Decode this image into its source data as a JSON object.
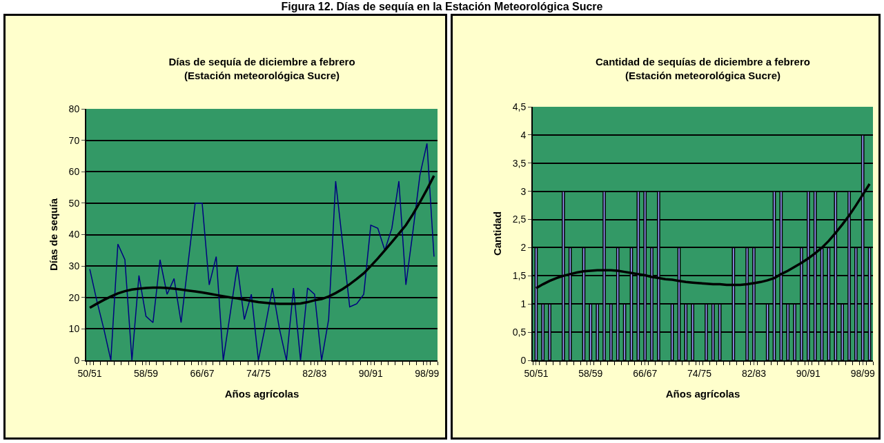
{
  "chart_data": [
    {
      "type": "line",
      "title": "Días de sequía de diciembre a febrero",
      "subtitle": "(Estación meteorológica Sucre)",
      "xlabel": "Años agrícolas",
      "ylabel": "Días de sequía",
      "annotations": [
        "Figura 12. Días de sequía en la Estación Meteorológica Sucre"
      ],
      "categories": [
        "50/51",
        null,
        null,
        null,
        null,
        null,
        null,
        null,
        "58/59",
        null,
        null,
        null,
        null,
        null,
        null,
        null,
        "66/67",
        null,
        null,
        null,
        null,
        null,
        null,
        null,
        "74/75",
        null,
        null,
        null,
        null,
        null,
        null,
        null,
        "82/83",
        null,
        null,
        null,
        null,
        null,
        null,
        null,
        "90/91",
        null,
        null,
        null,
        null,
        null,
        null,
        null,
        "98/99",
        null
      ],
      "series": [
        {
          "color": "#000080",
          "values": [
            29,
            19,
            10,
            0,
            37,
            32,
            0,
            27,
            14,
            12,
            32,
            21,
            26,
            12,
            31,
            50,
            50,
            24,
            33,
            0,
            15,
            30,
            13,
            21,
            0,
            11,
            23,
            10,
            0,
            23,
            0,
            23,
            21,
            0,
            13,
            57,
            37,
            17,
            18,
            21,
            43,
            42,
            35,
            42,
            57,
            24,
            41,
            59,
            69,
            33
          ]
        },
        {
          "type": "line",
          "color": "#000000",
          "values": [
            16.7,
            18,
            19.2,
            20.3,
            21.3,
            22,
            22.5,
            22.8,
            23,
            23.1,
            23.1,
            23,
            22.8,
            22.5,
            22.2,
            21.9,
            21.6,
            21.2,
            20.8,
            20.4,
            20,
            19.7,
            19.3,
            18.9,
            18.5,
            18.3,
            18.1,
            18,
            18,
            18,
            18.1,
            18.5,
            19.1,
            19.5,
            20.3,
            21.4,
            22.7,
            24.2,
            25.9,
            27.7,
            30,
            32.4,
            35,
            37.6,
            40.3,
            43,
            46.5,
            50.3,
            54.4,
            58.7
          ]
        }
      ],
      "ylim": [
        0,
        80
      ],
      "yticks": [
        0,
        10,
        20,
        30,
        40,
        50,
        60,
        70,
        80
      ],
      "grid": "y",
      "marker": "none"
    },
    {
      "type": "bar",
      "title": "Cantidad de sequías de diciembre a febrero",
      "subtitle": "(Estación meteorológica Sucre)",
      "xlabel": "Años agrícolas",
      "ylabel": "Cantidad",
      "categories": [
        "50/51",
        null,
        null,
        null,
        null,
        null,
        null,
        null,
        "58/59",
        null,
        null,
        null,
        null,
        null,
        null,
        null,
        "66/67",
        null,
        null,
        null,
        null,
        null,
        null,
        null,
        "74/75",
        null,
        null,
        null,
        null,
        null,
        null,
        null,
        "82/83",
        null,
        null,
        null,
        null,
        null,
        null,
        null,
        "90/91",
        null,
        null,
        null,
        null,
        null,
        null,
        null,
        "98/99",
        null
      ],
      "series": [
        {
          "color": "#9999ff",
          "values": [
            2,
            1,
            1,
            0,
            3,
            2,
            0,
            2,
            1,
            1,
            3,
            1,
            2,
            1,
            2,
            3,
            3,
            2,
            3,
            0,
            1,
            2,
            1,
            1,
            0,
            1,
            1,
            1,
            0,
            2,
            0,
            2,
            2,
            0,
            1,
            3,
            3,
            1,
            1,
            2,
            3,
            3,
            2,
            2,
            3,
            1,
            3,
            2,
            4,
            2
          ]
        },
        {
          "type": "line",
          "color": "#000000",
          "values": [
            1.28,
            1.35,
            1.41,
            1.46,
            1.5,
            1.53,
            1.56,
            1.58,
            1.59,
            1.6,
            1.6,
            1.6,
            1.59,
            1.57,
            1.55,
            1.53,
            1.51,
            1.48,
            1.46,
            1.44,
            1.43,
            1.41,
            1.39,
            1.38,
            1.37,
            1.36,
            1.35,
            1.35,
            1.34,
            1.34,
            1.34,
            1.35,
            1.37,
            1.39,
            1.42,
            1.46,
            1.53,
            1.59,
            1.66,
            1.73,
            1.81,
            1.9,
            2.0,
            2.12,
            2.26,
            2.41,
            2.57,
            2.75,
            2.94,
            3.13
          ]
        }
      ],
      "ylim": [
        0,
        4.5
      ],
      "yticks": [
        0,
        {
          "value": 0.5,
          "label": "0,5"
        },
        1,
        {
          "value": 1.5,
          "label": "1,5"
        },
        2,
        {
          "value": 2.5,
          "label": "2,5"
        },
        3,
        {
          "value": 3.5,
          "label": "3,5"
        },
        4,
        {
          "value": 4.5,
          "label": "4,5"
        }
      ],
      "grid": "y"
    }
  ]
}
